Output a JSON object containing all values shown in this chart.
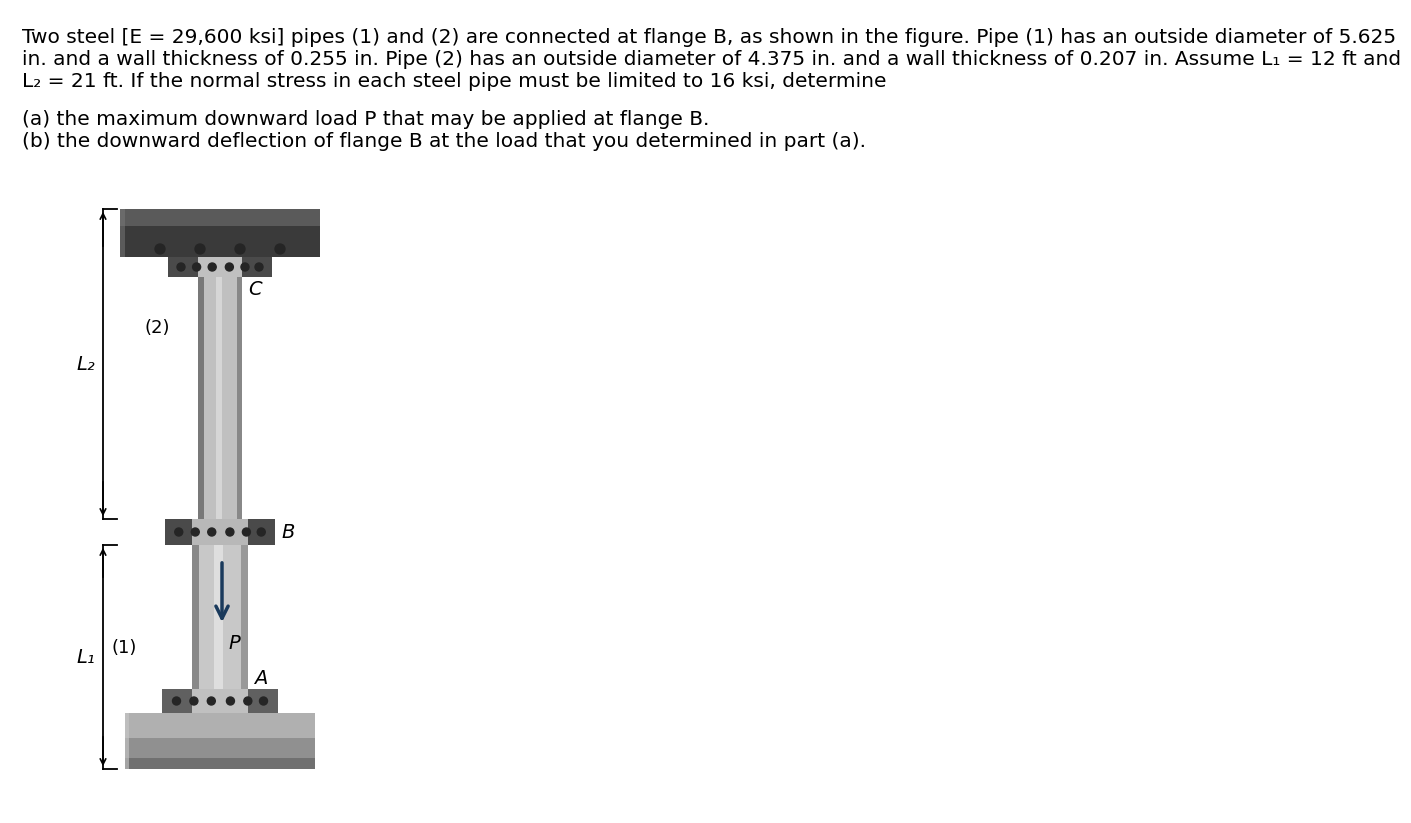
{
  "title_line1": "Two steel [E = 29,600 ksi] pipes (1) and (2) are connected at flange B, as shown in the figure. Pipe (1) has an outside diameter of 5.625",
  "title_line2": "in. and a wall thickness of 0.255 in. Pipe (2) has an outside diameter of 4.375 in. and a wall thickness of 0.207 in. Assume L₁ = 12 ft and",
  "title_line3": "L₂ = 21 ft. If the normal stress in each steel pipe must be limited to 16 ksi, determine",
  "part_a": "(a) the maximum downward load P that may be applied at flange B.",
  "part_b": "(b) the downward deflection of flange B at the load that you determined in part (a).",
  "label_C": "C",
  "label_B": "B",
  "label_A": "A",
  "label_P": "P",
  "label_1": "(1)",
  "label_2": "(2)",
  "label_L1": "L₁",
  "label_L2": "L₂",
  "bg_color": "#ffffff",
  "text_color": "#000000",
  "arrow_color": "#1a3a5c",
  "pipe2_light": "#d0d0d0",
  "pipe2_mid": "#b8b8b8",
  "pipe2_dark": "#808080",
  "pipe1_light": "#d8d8d8",
  "pipe1_mid": "#c0c0c0",
  "pipe1_dark": "#888888",
  "flange_dark": "#4a4a4a",
  "flange_mid": "#606060",
  "top_plate_dark": "#3a3a3a",
  "top_plate_mid": "#5a5a5a",
  "top_plate_light": "#7a7a7a",
  "bot_plate_light": "#b0b0b0",
  "bot_plate_mid": "#909090",
  "bot_plate_dark": "#707070"
}
